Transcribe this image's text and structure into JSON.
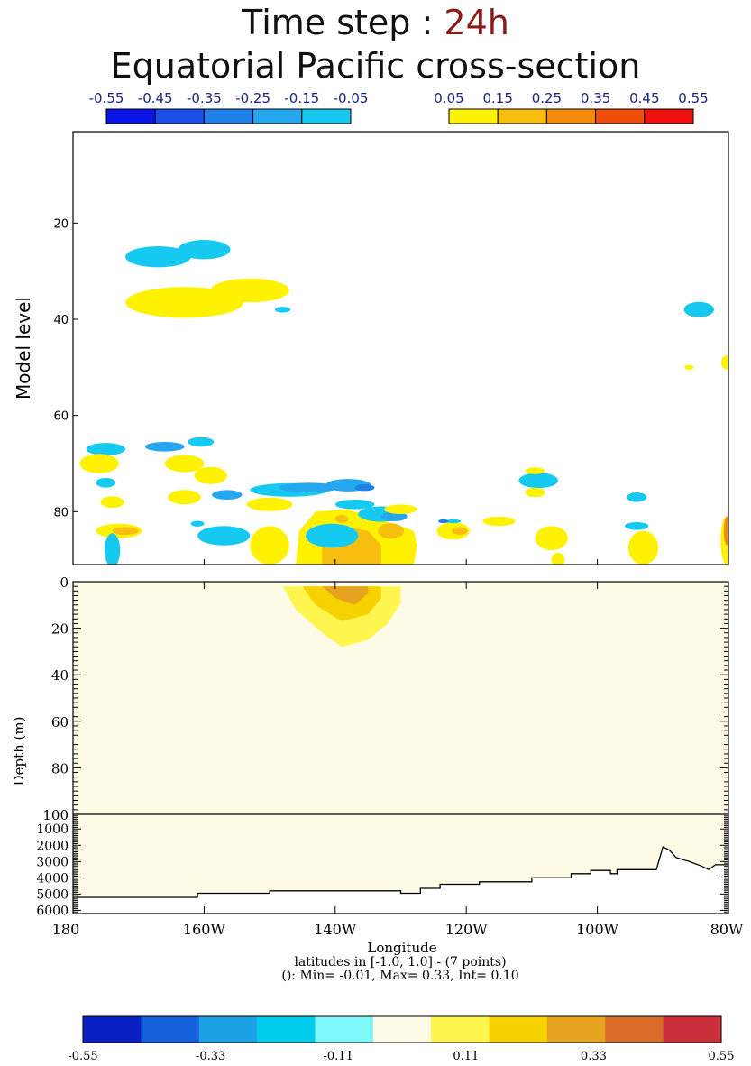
{
  "title": {
    "prefix": "Time step : ",
    "value": "24h",
    "line2": "Equatorial Pacific cross-section"
  },
  "colors": {
    "title_value": "#8b1a1a",
    "frame": "#000000",
    "ocean_background": "#fdfbe6"
  },
  "chart_data": [
    {
      "type": "heatmap",
      "panel": "atmosphere",
      "ylabel": "Model level",
      "y_ticks": [
        "20",
        "40",
        "60",
        "80"
      ],
      "y_tick_values": [
        20,
        40,
        60,
        80
      ],
      "ylim": [
        91,
        1
      ],
      "xlim": [
        180,
        280
      ],
      "legend_negative": {
        "labels": [
          "-0.55",
          "-0.45",
          "-0.35",
          "-0.25",
          "-0.15",
          "-0.05"
        ],
        "colors": [
          "#0a14e6",
          "#1a4fe8",
          "#1f7fe8",
          "#26a6ee",
          "#16c9f0"
        ],
        "label_color": "#1a237e"
      },
      "legend_positive": {
        "labels": [
          "0.05",
          "0.15",
          "0.25",
          "0.35",
          "0.45",
          "0.55"
        ],
        "colors": [
          "#fff200",
          "#f7bd0f",
          "#f48a0a",
          "#f24e0b",
          "#f11010"
        ],
        "label_color": "#1a237e"
      },
      "patches": [
        {
          "lon": 193,
          "level": 27,
          "rlon": 5,
          "rlev": 2.2,
          "value": -0.1
        },
        {
          "lon": 200,
          "level": 25.5,
          "rlon": 4,
          "rlev": 2,
          "value": -0.1
        },
        {
          "lon": 197,
          "level": 36.5,
          "rlon": 9,
          "rlev": 3.2,
          "value": 0.1
        },
        {
          "lon": 207,
          "level": 34,
          "rlon": 6,
          "rlev": 2.5,
          "value": 0.1
        },
        {
          "lon": 212,
          "level": 38,
          "rlon": 1.2,
          "rlev": 0.6,
          "value": -0.1
        },
        {
          "lon": 275.5,
          "level": 38,
          "rlon": 2.3,
          "rlev": 1.6,
          "value": -0.1
        },
        {
          "lon": 279.8,
          "level": 49,
          "rlon": 0.9,
          "rlev": 1.5,
          "value": 0.1
        },
        {
          "lon": 274,
          "level": 50,
          "rlon": 0.7,
          "rlev": 0.5,
          "value": 0.1
        },
        {
          "lon": 185,
          "level": 67,
          "rlon": 3,
          "rlev": 1.3,
          "value": -0.1
        },
        {
          "lon": 194,
          "level": 66.5,
          "rlon": 3,
          "rlev": 1,
          "value": -0.2
        },
        {
          "lon": 199.5,
          "level": 65.5,
          "rlon": 2,
          "rlev": 1,
          "value": -0.1
        },
        {
          "lon": 184,
          "level": 70,
          "rlon": 3,
          "rlev": 2,
          "value": 0.1
        },
        {
          "lon": 197,
          "level": 70,
          "rlon": 3,
          "rlev": 1.8,
          "value": 0.1
        },
        {
          "lon": 185,
          "level": 74,
          "rlon": 1.5,
          "rlev": 1,
          "value": -0.1
        },
        {
          "lon": 201,
          "level": 72.5,
          "rlon": 2.5,
          "rlev": 1.8,
          "value": 0.1
        },
        {
          "lon": 186,
          "level": 78,
          "rlon": 1.8,
          "rlev": 1.2,
          "value": 0.1
        },
        {
          "lon": 197,
          "level": 77,
          "rlon": 2.5,
          "rlev": 1.5,
          "value": 0.1
        },
        {
          "lon": 203.5,
          "level": 76.5,
          "rlon": 2.3,
          "rlev": 1,
          "value": -0.2
        },
        {
          "lon": 213,
          "level": 75.5,
          "rlon": 6,
          "rlev": 1.4,
          "value": -0.1
        },
        {
          "lon": 216,
          "level": 75,
          "rlon": 4.5,
          "rlev": 1,
          "value": -0.2
        },
        {
          "lon": 222,
          "level": 74.5,
          "rlon": 3.5,
          "rlev": 1.3,
          "value": -0.2
        },
        {
          "lon": 224.5,
          "level": 75,
          "rlon": 1.5,
          "rlev": 0.7,
          "value": -0.3
        },
        {
          "lon": 210,
          "level": 78.5,
          "rlon": 3.5,
          "rlev": 1.4,
          "value": 0.1
        },
        {
          "lon": 223,
          "level": 78.5,
          "rlon": 3,
          "rlev": 1,
          "value": -0.1
        },
        {
          "lon": 227,
          "level": 80.5,
          "rlon": 3.5,
          "rlev": 1.6,
          "value": -0.1
        },
        {
          "lon": 229,
          "level": 81,
          "rlon": 2,
          "rlev": 1,
          "value": -0.2
        },
        {
          "lon": 230,
          "level": 79.5,
          "rlon": 2.5,
          "rlev": 1,
          "value": 0.1
        },
        {
          "lon": 187,
          "level": 84,
          "rlon": 3.5,
          "rlev": 1.5,
          "value": 0.1
        },
        {
          "lon": 188,
          "level": 84,
          "rlon": 2,
          "rlev": 0.8,
          "value": 0.2
        },
        {
          "lon": 186,
          "level": 88,
          "rlon": 1.2,
          "rlev": 3.5,
          "value": -0.1
        },
        {
          "lon": 203,
          "level": 85,
          "rlon": 4,
          "rlev": 2,
          "value": -0.1
        },
        {
          "lon": 199,
          "level": 82.5,
          "rlon": 1,
          "rlev": 0.6,
          "value": -0.1
        },
        {
          "lon": 210,
          "level": 87,
          "rlon": 3,
          "rlev": 4,
          "value": 0.1
        },
        {
          "lon": 219.5,
          "level": 85,
          "rlon": 4,
          "rlev": 2.5,
          "value": -0.1
        },
        {
          "lon": 238,
          "level": 84,
          "rlon": 2.5,
          "rlev": 1.8,
          "value": 0.1
        },
        {
          "lon": 239,
          "level": 84,
          "rlon": 1.2,
          "rlev": 0.8,
          "value": 0.2
        },
        {
          "lon": 238,
          "level": 82,
          "rlon": 1.2,
          "rlev": 0.4,
          "value": -0.1
        },
        {
          "lon": 245,
          "level": 82,
          "rlon": 2.5,
          "rlev": 1,
          "value": 0.1
        },
        {
          "lon": 251,
          "level": 73.5,
          "rlon": 3,
          "rlev": 1.6,
          "value": -0.1
        },
        {
          "lon": 250.5,
          "level": 71.5,
          "rlon": 1.5,
          "rlev": 0.7,
          "value": 0.1
        },
        {
          "lon": 250.5,
          "level": 76,
          "rlon": 1.5,
          "rlev": 1,
          "value": 0.1
        },
        {
          "lon": 253,
          "level": 85.5,
          "rlon": 2.5,
          "rlev": 2.5,
          "value": 0.1
        },
        {
          "lon": 254,
          "level": 90,
          "rlon": 1,
          "rlev": 1.5,
          "value": 0.1
        },
        {
          "lon": 266,
          "level": 77,
          "rlon": 1.5,
          "rlev": 1,
          "value": -0.1
        },
        {
          "lon": 267,
          "level": 87.5,
          "rlon": 2.3,
          "rlev": 3.5,
          "value": 0.1
        },
        {
          "lon": 266,
          "level": 83,
          "rlon": 1.8,
          "rlev": 0.8,
          "value": -0.1
        },
        {
          "lon": 279.7,
          "level": 86,
          "rlon": 0.9,
          "rlev": 5,
          "value": 0.1
        },
        {
          "lon": 279.8,
          "level": 84,
          "rlon": 0.5,
          "rlev": 3,
          "value": 0.3
        }
      ],
      "intense_patches": [
        {
          "lon": 228.5,
          "level": 84,
          "rlon": 2,
          "rlev": 1.6,
          "value": 0.2
        },
        {
          "lon": 221,
          "level": 81.5,
          "rlon": 1,
          "rlev": 0.8,
          "value": 0.2
        },
        {
          "lon": 236.5,
          "level": 82,
          "rlon": 0.8,
          "rlev": 0.4,
          "value": -0.3
        }
      ],
      "plume": [
        {
          "lon": 214,
          "level": 91
        },
        {
          "lon": 214.5,
          "level": 84
        },
        {
          "lon": 217,
          "level": 80
        },
        {
          "lon": 222,
          "level": 79.5
        },
        {
          "lon": 226,
          "level": 81.5
        },
        {
          "lon": 229,
          "level": 82.5
        },
        {
          "lon": 232,
          "level": 84
        },
        {
          "lon": 232.5,
          "level": 87
        },
        {
          "lon": 232,
          "level": 91
        }
      ],
      "plume_core": [
        {
          "lon": 218,
          "level": 91
        },
        {
          "lon": 218,
          "level": 84
        },
        {
          "lon": 221,
          "level": 83
        },
        {
          "lon": 225,
          "level": 84
        },
        {
          "lon": 227,
          "level": 87
        },
        {
          "lon": 227,
          "level": 91
        }
      ]
    },
    {
      "type": "heatmap",
      "panel": "ocean",
      "xlabel": "Longitude",
      "ylabel": "Depth (m)",
      "x_ticks": [
        "180",
        "160W",
        "140W",
        "120W",
        "100W",
        "80W"
      ],
      "x_tick_values": [
        180,
        200,
        220,
        240,
        260,
        280
      ],
      "xlim": [
        180,
        280
      ],
      "upper_y_ticks": [
        "0",
        "20",
        "40",
        "60",
        "80",
        "100"
      ],
      "upper_y_tick_values": [
        0,
        20,
        40,
        60,
        80,
        100
      ],
      "upper_ylim": [
        0,
        100
      ],
      "lower_y_ticks": [
        "1000",
        "2000",
        "3000",
        "4000",
        "5000",
        "6000"
      ],
      "lower_y_tick_values": [
        1000,
        2000,
        3000,
        4000,
        5000,
        6000
      ],
      "lower_ylim": [
        100,
        6200
      ],
      "contours": [
        {
          "value": 0.1,
          "color": "#fff54f",
          "points": [
            {
              "lon": 212,
              "depth": 2
            },
            {
              "lon": 214,
              "depth": 12
            },
            {
              "lon": 218,
              "depth": 22
            },
            {
              "lon": 221,
              "depth": 28
            },
            {
              "lon": 225,
              "depth": 25
            },
            {
              "lon": 228,
              "depth": 18
            },
            {
              "lon": 230,
              "depth": 9
            },
            {
              "lon": 230,
              "depth": 2
            }
          ]
        },
        {
          "value": 0.2,
          "color": "#f6d200",
          "points": [
            {
              "lon": 215,
              "depth": 2
            },
            {
              "lon": 217,
              "depth": 10
            },
            {
              "lon": 221,
              "depth": 17
            },
            {
              "lon": 225,
              "depth": 14
            },
            {
              "lon": 227,
              "depth": 7
            },
            {
              "lon": 227,
              "depth": 2
            }
          ]
        },
        {
          "value": 0.3,
          "color": "#e7a31f",
          "points": [
            {
              "lon": 218,
              "depth": 2
            },
            {
              "lon": 220,
              "depth": 7
            },
            {
              "lon": 223,
              "depth": 10
            },
            {
              "lon": 225,
              "depth": 5
            },
            {
              "lon": 225,
              "depth": 2
            }
          ]
        }
      ],
      "bathymetry": [
        {
          "lon": 180,
          "depth": 5200
        },
        {
          "lon": 199,
          "depth": 5200
        },
        {
          "lon": 199,
          "depth": 4950
        },
        {
          "lon": 210,
          "depth": 4950
        },
        {
          "lon": 210,
          "depth": 4800
        },
        {
          "lon": 230,
          "depth": 4800
        },
        {
          "lon": 230,
          "depth": 4950
        },
        {
          "lon": 233,
          "depth": 4950
        },
        {
          "lon": 233,
          "depth": 4650
        },
        {
          "lon": 236,
          "depth": 4650
        },
        {
          "lon": 236,
          "depth": 4400
        },
        {
          "lon": 242,
          "depth": 4400
        },
        {
          "lon": 242,
          "depth": 4250
        },
        {
          "lon": 250,
          "depth": 4250
        },
        {
          "lon": 250,
          "depth": 4000
        },
        {
          "lon": 256,
          "depth": 4000
        },
        {
          "lon": 256,
          "depth": 3750
        },
        {
          "lon": 259,
          "depth": 3750
        },
        {
          "lon": 259,
          "depth": 3550
        },
        {
          "lon": 262,
          "depth": 3550
        },
        {
          "lon": 262,
          "depth": 3750
        },
        {
          "lon": 263,
          "depth": 3750
        },
        {
          "lon": 263,
          "depth": 3500
        },
        {
          "lon": 269,
          "depth": 3500
        },
        {
          "lon": 270,
          "depth": 2100
        },
        {
          "lon": 271,
          "depth": 2300
        },
        {
          "lon": 272,
          "depth": 2750
        },
        {
          "lon": 274,
          "depth": 3000
        },
        {
          "lon": 276,
          "depth": 3300
        },
        {
          "lon": 277,
          "depth": 3500
        },
        {
          "lon": 278,
          "depth": 3200
        },
        {
          "lon": 280,
          "depth": 3200
        }
      ],
      "notes": {
        "line1": "latitudes in [-1.0, 1.0] - (7 points)",
        "line2": "(): Min= -0.01, Max= 0.33, Int= 0.10"
      }
    },
    {
      "type": "heatmap",
      "panel": "colorbar",
      "labels": [
        "-0.55",
        "-0.33",
        "-0.11",
        "0.11",
        "0.33",
        "0.55"
      ],
      "label_values": [
        -0.55,
        -0.33,
        -0.11,
        0.11,
        0.33,
        0.55
      ],
      "range": [
        -0.55,
        0.55
      ],
      "colors": [
        "#0a1fc4",
        "#1560dd",
        "#1da2e8",
        "#00cdeb",
        "#7ff8fb",
        "#fdfbe6",
        "#fff54f",
        "#f6d200",
        "#e7a31f",
        "#da6c2a",
        "#c9303c"
      ]
    }
  ]
}
